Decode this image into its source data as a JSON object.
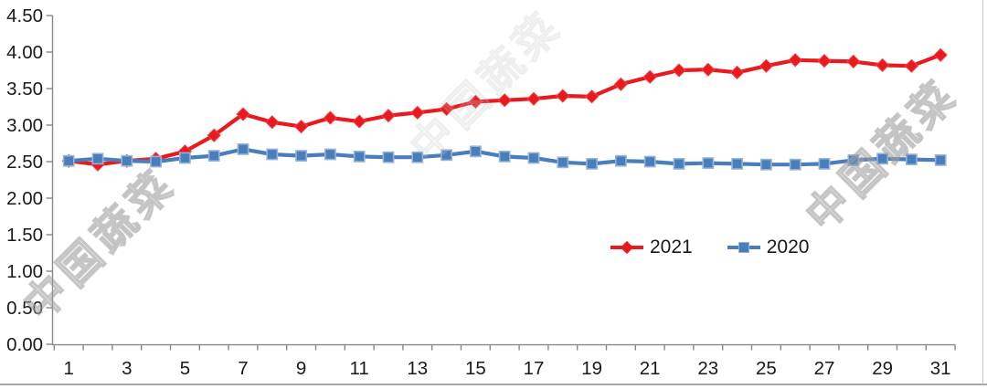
{
  "watermark": {
    "text": "中国蔬菜"
  },
  "colors": {
    "series_2021": "#e8191f",
    "series_2021_marker_border": "#ef4444",
    "series_2020": "#4a7ebb",
    "series_2020_marker_border": "#94b3d8",
    "axis": "#898989",
    "label": "#1a1a1a",
    "background": "#ffffff"
  },
  "chart_data": {
    "type": "line",
    "title": "",
    "xlabel": "",
    "ylabel": "",
    "grid": "off",
    "legend_position": "inside-bottom-right",
    "x": [
      1,
      2,
      3,
      4,
      5,
      6,
      7,
      8,
      9,
      10,
      11,
      12,
      13,
      14,
      15,
      16,
      17,
      18,
      19,
      20,
      21,
      22,
      23,
      24,
      25,
      26,
      27,
      28,
      29,
      30,
      31
    ],
    "x_tick_labels": [
      1,
      3,
      5,
      7,
      9,
      11,
      13,
      15,
      17,
      19,
      21,
      23,
      25,
      27,
      29,
      31
    ],
    "ylim": [
      0,
      4.5
    ],
    "y_tick_step": 0.5,
    "y_tick_labels": [
      "0.00",
      "0.50",
      "1.00",
      "1.50",
      "2.00",
      "2.50",
      "3.00",
      "3.50",
      "4.00",
      "4.50"
    ],
    "series": [
      {
        "name": "2021",
        "marker": "diamond",
        "color": "#e8191f",
        "marker_border": "#ef4444",
        "values": [
          2.51,
          2.46,
          2.51,
          2.54,
          2.64,
          2.86,
          3.15,
          3.04,
          2.98,
          3.1,
          3.05,
          3.13,
          3.17,
          3.22,
          3.32,
          3.34,
          3.36,
          3.4,
          3.39,
          3.56,
          3.66,
          3.75,
          3.76,
          3.72,
          3.81,
          3.89,
          3.88,
          3.87,
          3.82,
          3.81,
          3.96
        ]
      },
      {
        "name": "2020",
        "marker": "square",
        "color": "#4a7ebb",
        "marker_border": "#94b3d8",
        "values": [
          2.51,
          2.54,
          2.51,
          2.5,
          2.55,
          2.58,
          2.67,
          2.6,
          2.58,
          2.6,
          2.57,
          2.56,
          2.56,
          2.59,
          2.64,
          2.57,
          2.55,
          2.49,
          2.47,
          2.51,
          2.5,
          2.47,
          2.48,
          2.47,
          2.46,
          2.46,
          2.47,
          2.52,
          2.54,
          2.53,
          2.52
        ]
      }
    ]
  }
}
